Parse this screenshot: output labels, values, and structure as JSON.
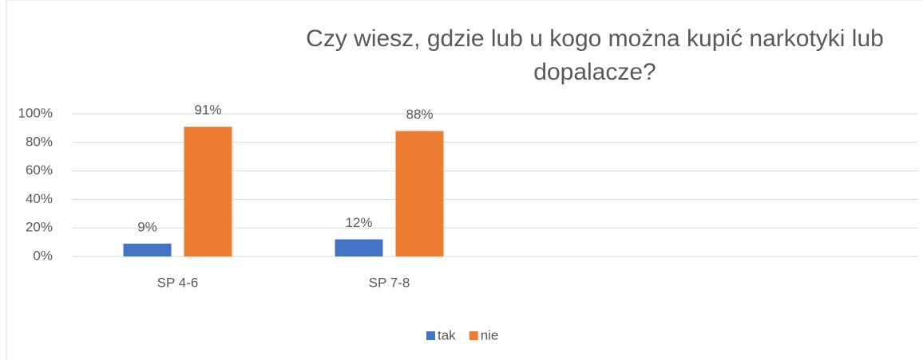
{
  "chart_data": {
    "type": "bar",
    "title": "Czy wiesz, gdzie lub u kogo można kupić narkotyki lub dopalacze?",
    "categories": [
      "SP 4-6",
      "SP 7-8",
      null,
      null
    ],
    "series": [
      {
        "name": "tak",
        "color": "#4472c4",
        "values": [
          9,
          12,
          null,
          null
        ],
        "value_labels": [
          "9%",
          "12%",
          null,
          null
        ]
      },
      {
        "name": "nie",
        "color": "#ed7d31",
        "values": [
          91,
          88,
          null,
          null
        ],
        "value_labels": [
          "91%",
          "88%",
          null,
          null
        ]
      }
    ],
    "ylim": [
      0,
      100
    ],
    "yticks": [
      {
        "value": 0,
        "label": "0%"
      },
      {
        "value": 20,
        "label": "20%"
      },
      {
        "value": 40,
        "label": "40%"
      },
      {
        "value": 60,
        "label": "60%"
      },
      {
        "value": 80,
        "label": "80%"
      },
      {
        "value": 100,
        "label": "100%"
      }
    ],
    "grid": true,
    "legend": "bottom"
  }
}
